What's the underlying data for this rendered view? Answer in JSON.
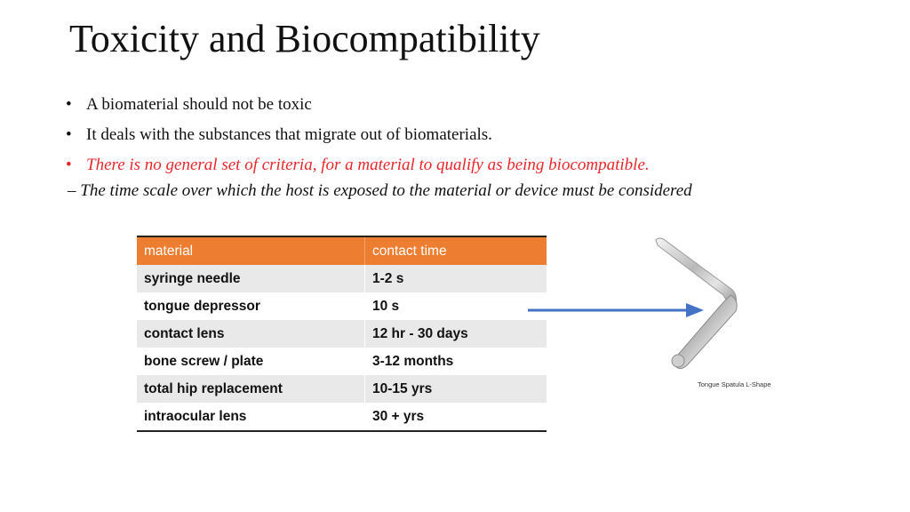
{
  "slide": {
    "title": "Toxicity and Biocompatibility",
    "bullets": [
      {
        "marker": "•",
        "text": "A biomaterial should not be toxic"
      },
      {
        "marker": "•",
        "text": "It deals with the substances that migrate out of biomaterials."
      },
      {
        "marker": "•",
        "text": "There is no general set of criteria, for a material to qualify as being biocompatible."
      }
    ],
    "subline": "– The time scale over which the host is exposed to the material or device must be considered"
  },
  "table": {
    "headers": [
      "material",
      "contact time"
    ],
    "rows": [
      [
        "syringe needle",
        "1-2 s"
      ],
      [
        "tongue depressor",
        "10 s"
      ],
      [
        "contact lens",
        "12 hr - 30 days"
      ],
      [
        "bone screw / plate",
        "3-12 months"
      ],
      [
        "total hip replacement",
        "10-15 yrs"
      ],
      [
        "intraocular lens",
        "30 + yrs"
      ]
    ],
    "header_color": "#ed7d31",
    "band_color": "#e9e9e9"
  },
  "image": {
    "caption": "Tongue Spatula L-Shape",
    "arrow_color": "#4472c4",
    "icon": "tongue-spatula-image"
  }
}
